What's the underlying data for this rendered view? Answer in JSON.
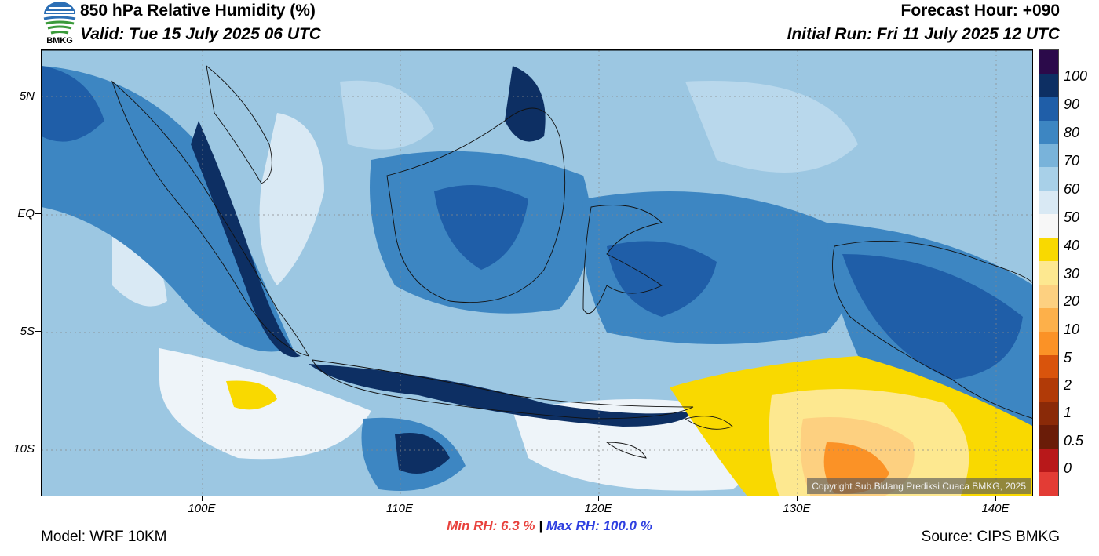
{
  "header": {
    "title": "850 hPa Relative Humidity (%)",
    "valid": "Valid: Tue 15 July 2025 06 UTC",
    "forecast_hour": "Forecast Hour: +090",
    "initial_run": "Initial Run: Fri 11 July 2025 12 UTC",
    "logo_text": "BMKG"
  },
  "map": {
    "copyright": "Copyright Sub Bidang Prediksi Cuaca BMKG, 2025",
    "lat_labels": [
      "5N",
      "EQ",
      "5S",
      "10S"
    ],
    "lon_labels": [
      "100E",
      "110E",
      "120E",
      "130E",
      "140E"
    ]
  },
  "colorbar": {
    "labels": [
      "100",
      "90",
      "80",
      "70",
      "60",
      "50",
      "40",
      "30",
      "20",
      "10",
      "5",
      "2",
      "1",
      "0.5",
      "0"
    ],
    "colors": [
      "#2b0a4a",
      "#0d2f63",
      "#1f5ea8",
      "#3d86c2",
      "#79b3da",
      "#a8d0e8",
      "#d9e9f4",
      "#f7f7f7",
      "#f9d900",
      "#fde890",
      "#fdd080",
      "#fdb04a",
      "#fb9226",
      "#d9540c",
      "#b13a07",
      "#8a2a08",
      "#6a1c08",
      "#b8181a",
      "#e33c35"
    ]
  },
  "stats": {
    "min_rh": "Min RH:   6.3 %",
    "separator": " | ",
    "max_rh": "Max RH: 100.0 %"
  },
  "footer": {
    "model": "Model: WRF 10KM",
    "source": "Source: CIPS BMKG"
  }
}
